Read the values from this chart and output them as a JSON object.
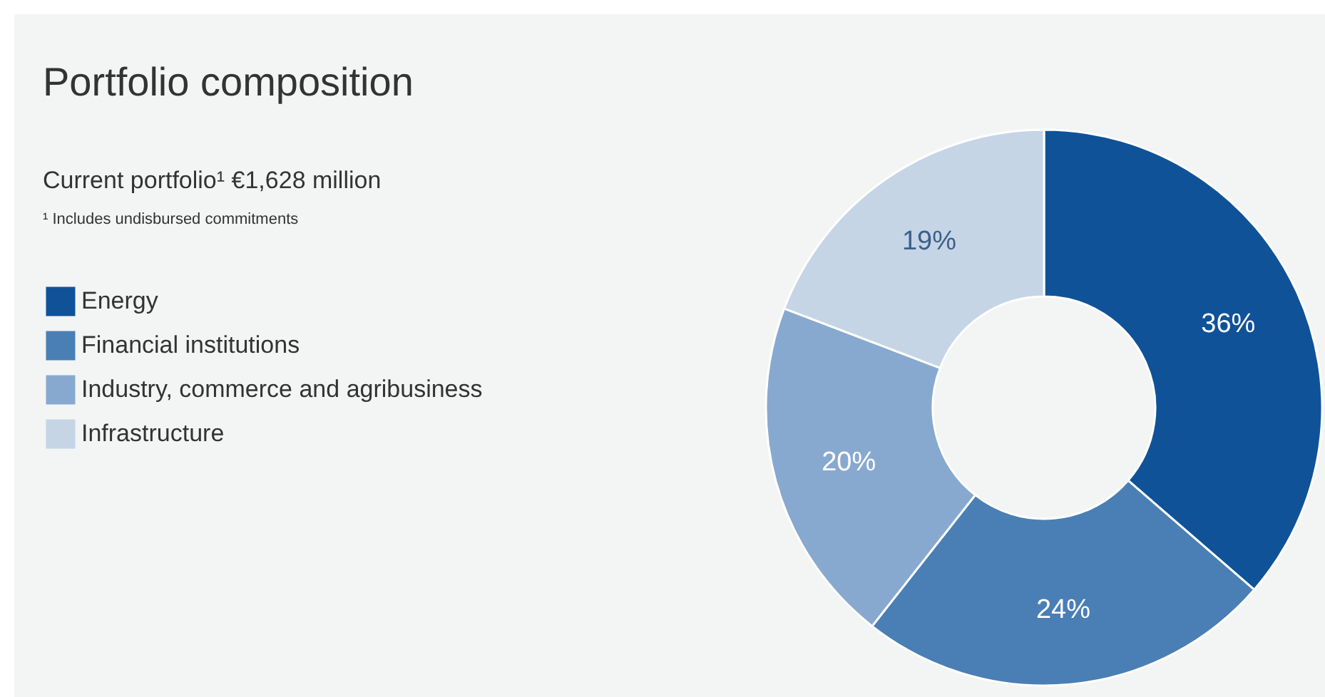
{
  "chart_data": {
    "type": "donut",
    "title": "Portfolio composition",
    "subtitle": "Current portfolio¹ €1,628 million",
    "annotations": [
      "¹ Includes undisbursed commitments"
    ],
    "categories": [
      "Energy",
      "Financial institutions",
      "Industry, commerce and agribusiness",
      "Infrastructure"
    ],
    "values": [
      36,
      24,
      20,
      19
    ],
    "colors": [
      "#0f5298",
      "#4a7fb5",
      "#88a9cf",
      "#c5d5e6"
    ],
    "value_labels": [
      "36%",
      "24%",
      "20%",
      "19%"
    ],
    "legend": "left"
  }
}
